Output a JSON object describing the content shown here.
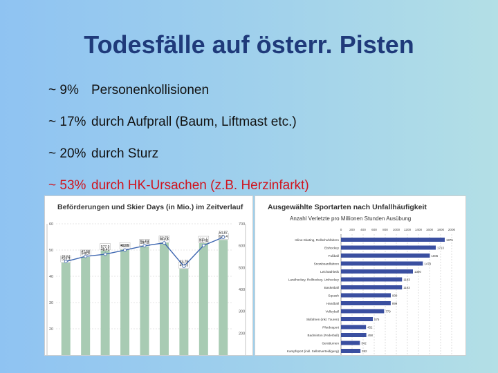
{
  "title": "Todesfälle auf österr. Pisten",
  "bullets": [
    {
      "pct": "~ 9%",
      "text": "Personenkollisionen"
    },
    {
      "pct": "~ 17%",
      "text": "durch Aufprall (Baum, Liftmast etc.)"
    },
    {
      "pct": "~ 20%",
      "text": "durch Sturz"
    },
    {
      "pct": "~ 53%",
      "text": "durch HK-Ursachen (z.B. Herzinfarkt)"
    }
  ],
  "colors": {
    "title": "#1f3a7a",
    "red_bullet": "#d0141e",
    "bar_green": "#a8cbb3",
    "bar_blue": "#3d66b0",
    "hbar_blue": "#3a4fa0"
  },
  "chart_data": [
    {
      "type": "bar",
      "title": "Beförderungen und Skier Days (in Mio.) im Zeitverlauf",
      "series": [
        {
          "values": [
            522.3,
            548.6,
            577.9,
            582.5,
            597.0,
            613.3,
            494.3,
            611.5,
            626.4
          ]
        },
        {
          "values": [
            45.64,
            47.58,
            48.41,
            49.99,
            51.63,
            52.72,
            43.79,
            51.74,
            54.87
          ]
        }
      ],
      "bar_labels": [
        "522,3",
        "548,6",
        "577,9",
        "582,5",
        "597,0",
        "613,3",
        "494,3",
        "611,5",
        "626,4"
      ],
      "line_labels": [
        "45,64",
        "47,58",
        "48,41",
        "49,99",
        "51,63",
        "52,72",
        "43,79",
        "51,74",
        "54,87"
      ],
      "y_left_ticks": [
        "60",
        "50",
        "40",
        "30",
        "20"
      ],
      "y_right_ticks": [
        "700",
        "600",
        "500",
        "400",
        "300",
        "200"
      ],
      "ylim_left": [
        10,
        60
      ],
      "ylim_right": [
        100,
        700
      ]
    },
    {
      "type": "bar",
      "title": "Ausgewählte Sportarten nach Unfallhäufigkeit",
      "subtitle": "Anzahl Verletzte pro Millionen Stunden Ausübung",
      "categories": [
        "Inline-Skating, Rollschuhfahren",
        "Eishockey",
        "Fußball",
        "Snowboardfahren",
        "Leichtathletik",
        "Landhockey, Rollhockey, Unihockey",
        "Basketball",
        "Squash",
        "Handball",
        "Volleyball",
        "Skifahren (inkl. Touren)",
        "Pferdesport",
        "Badminton (Federball)",
        "Gerätturnen",
        "Kampfsport (inkl. Selbstverteidigung)"
      ],
      "values": [
        1875,
        1713,
        1606,
        1479,
        1300,
        1103,
        1103,
        900,
        899,
        779,
        575,
        452,
        458,
        342,
        352
      ],
      "value_labels": [
        "1875",
        "1713",
        "1606",
        "1479",
        "1300",
        "1103",
        "1103",
        "900",
        "899",
        "779",
        "575",
        "452",
        "458",
        "342",
        "352"
      ],
      "x_ticks": [
        "0",
        "200",
        "400",
        "600",
        "800",
        "1000",
        "1200",
        "1400",
        "1600",
        "1800",
        "2000"
      ],
      "xlim": [
        0,
        2000
      ]
    }
  ]
}
